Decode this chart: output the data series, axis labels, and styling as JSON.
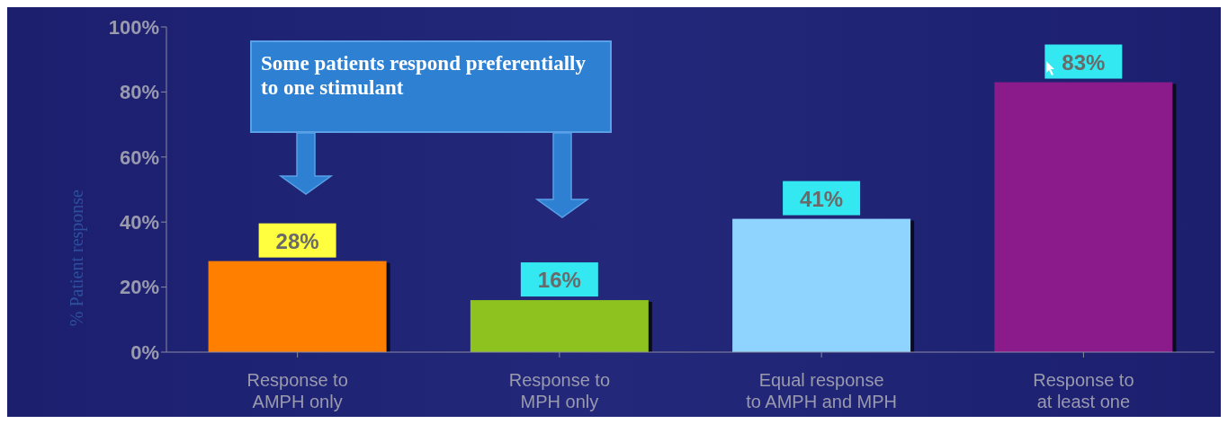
{
  "chart_data": {
    "type": "bar",
    "categories": [
      "Response to AMPH only",
      "Response to MPH only",
      "Equal response to AMPH and MPH",
      "Response to at least one"
    ],
    "values": [
      28,
      16,
      41,
      83
    ],
    "colors": [
      "#ff7f00",
      "#8dc21f",
      "#8fd3ff",
      "#8b1a8b"
    ],
    "value_labels": [
      "28%",
      "16%",
      "41%",
      "83%"
    ],
    "ylabel": "% Patient response",
    "ylim": [
      0,
      100
    ],
    "yticks": [
      {
        "value": 0,
        "label": "0%"
      },
      {
        "value": 20,
        "label": "20%"
      },
      {
        "value": 40,
        "label": "40%"
      },
      {
        "value": 60,
        "label": "60%"
      },
      {
        "value": 80,
        "label": "80%"
      },
      {
        "value": 100,
        "label": "100%"
      }
    ],
    "grid": false,
    "legend": false,
    "annotations": [
      "Some patients respond preferentially to one stimulant"
    ]
  }
}
